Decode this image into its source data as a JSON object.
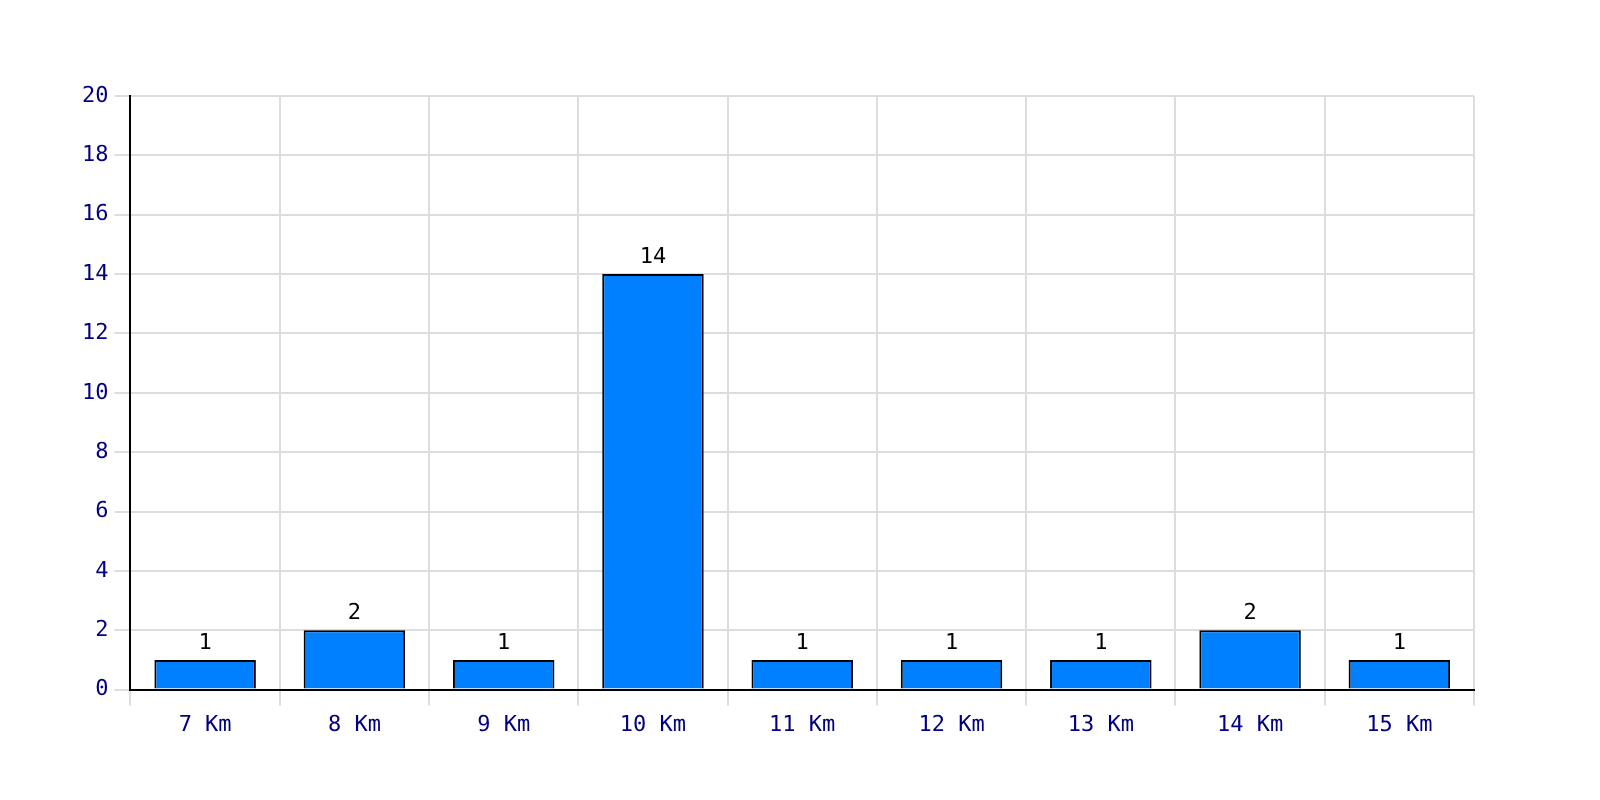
{
  "chart_data": {
    "type": "bar",
    "categories": [
      "7 Km",
      "8 Km",
      "9 Km",
      "10 Km",
      "11 Km",
      "12 Km",
      "13 Km",
      "14 Km",
      "15 Km"
    ],
    "series": [
      {
        "color": "#0080ff",
        "values": [
          1,
          2,
          1,
          14,
          1,
          1,
          1,
          2,
          1
        ]
      }
    ],
    "ylim": [
      0,
      20
    ],
    "yticks": [
      0,
      2,
      4,
      6,
      8,
      10,
      12,
      14,
      16,
      18,
      20
    ],
    "grid": true,
    "data_labels": true,
    "legend": false
  }
}
